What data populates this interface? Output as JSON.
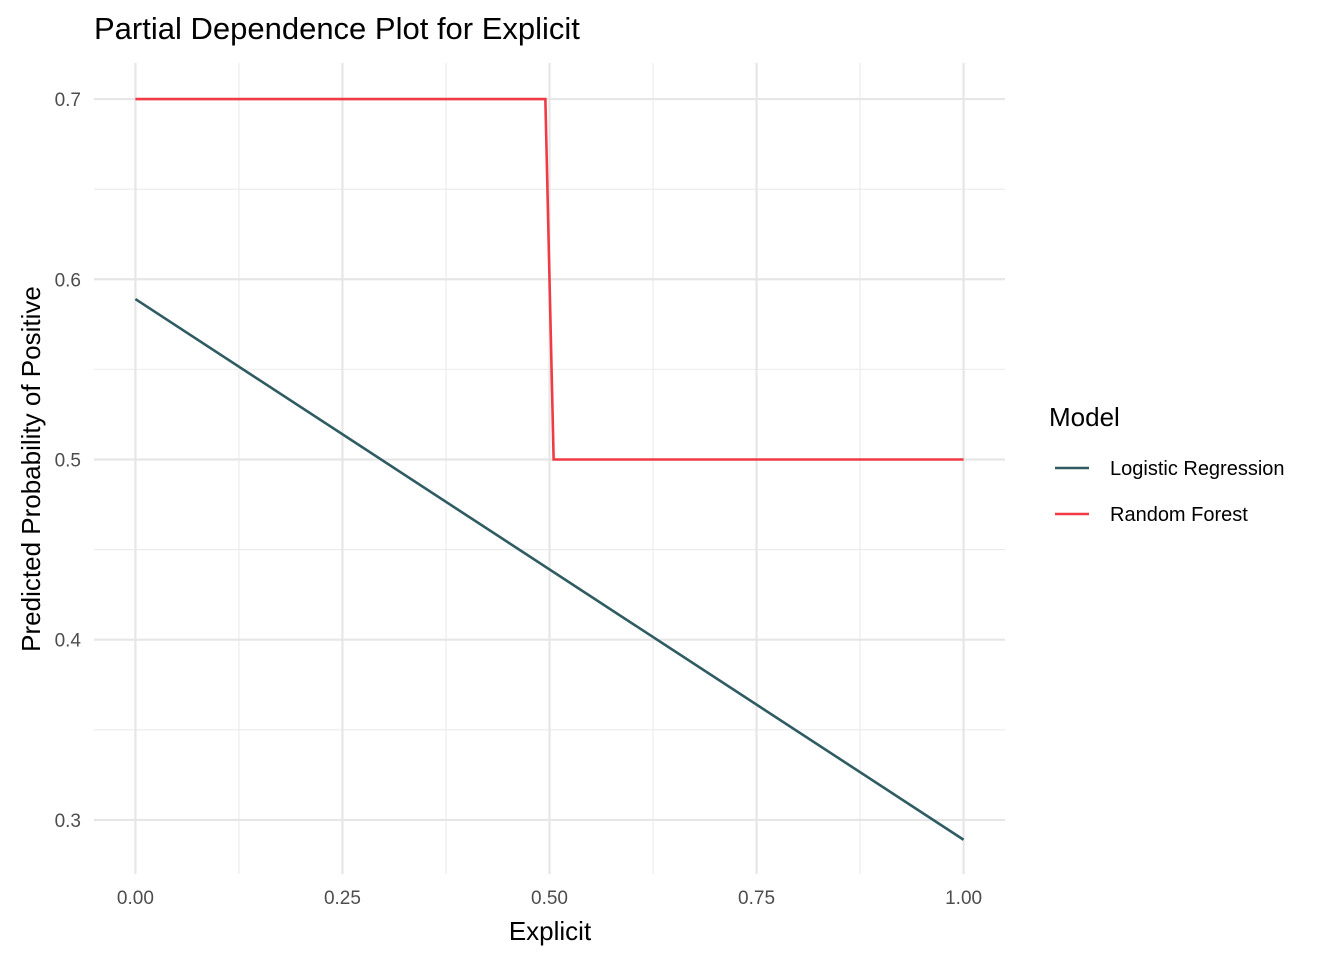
{
  "chart_data": {
    "type": "line",
    "title": "Partial Dependence Plot for Explicit",
    "xlabel": "Explicit",
    "ylabel": "Predicted Probability of Positive",
    "xlim": [
      -0.05,
      1.05
    ],
    "ylim": [
      0.27,
      0.72
    ],
    "x_ticks": [
      0.0,
      0.25,
      0.5,
      0.75,
      1.0
    ],
    "x_tick_labels": [
      "0.00",
      "0.25",
      "0.50",
      "0.75",
      "1.00"
    ],
    "x_minor_ticks": [
      0.125,
      0.375,
      0.625,
      0.875
    ],
    "y_ticks": [
      0.3,
      0.4,
      0.5,
      0.6,
      0.7
    ],
    "y_tick_labels": [
      "0.3",
      "0.4",
      "0.5",
      "0.6",
      "0.7"
    ],
    "y_minor_ticks": [
      0.35,
      0.45,
      0.55,
      0.65
    ],
    "grid": true,
    "legend_position": "right",
    "legend_title": "Model",
    "series": [
      {
        "name": "Logistic Regression",
        "color": "#2F5C62",
        "x": [
          0.0,
          1.0
        ],
        "y": [
          0.589,
          0.289
        ]
      },
      {
        "name": "Random Forest",
        "color": "#F03A45",
        "x": [
          0.0,
          0.495,
          0.505,
          1.0
        ],
        "y": [
          0.7,
          0.7,
          0.5,
          0.5
        ]
      }
    ]
  }
}
